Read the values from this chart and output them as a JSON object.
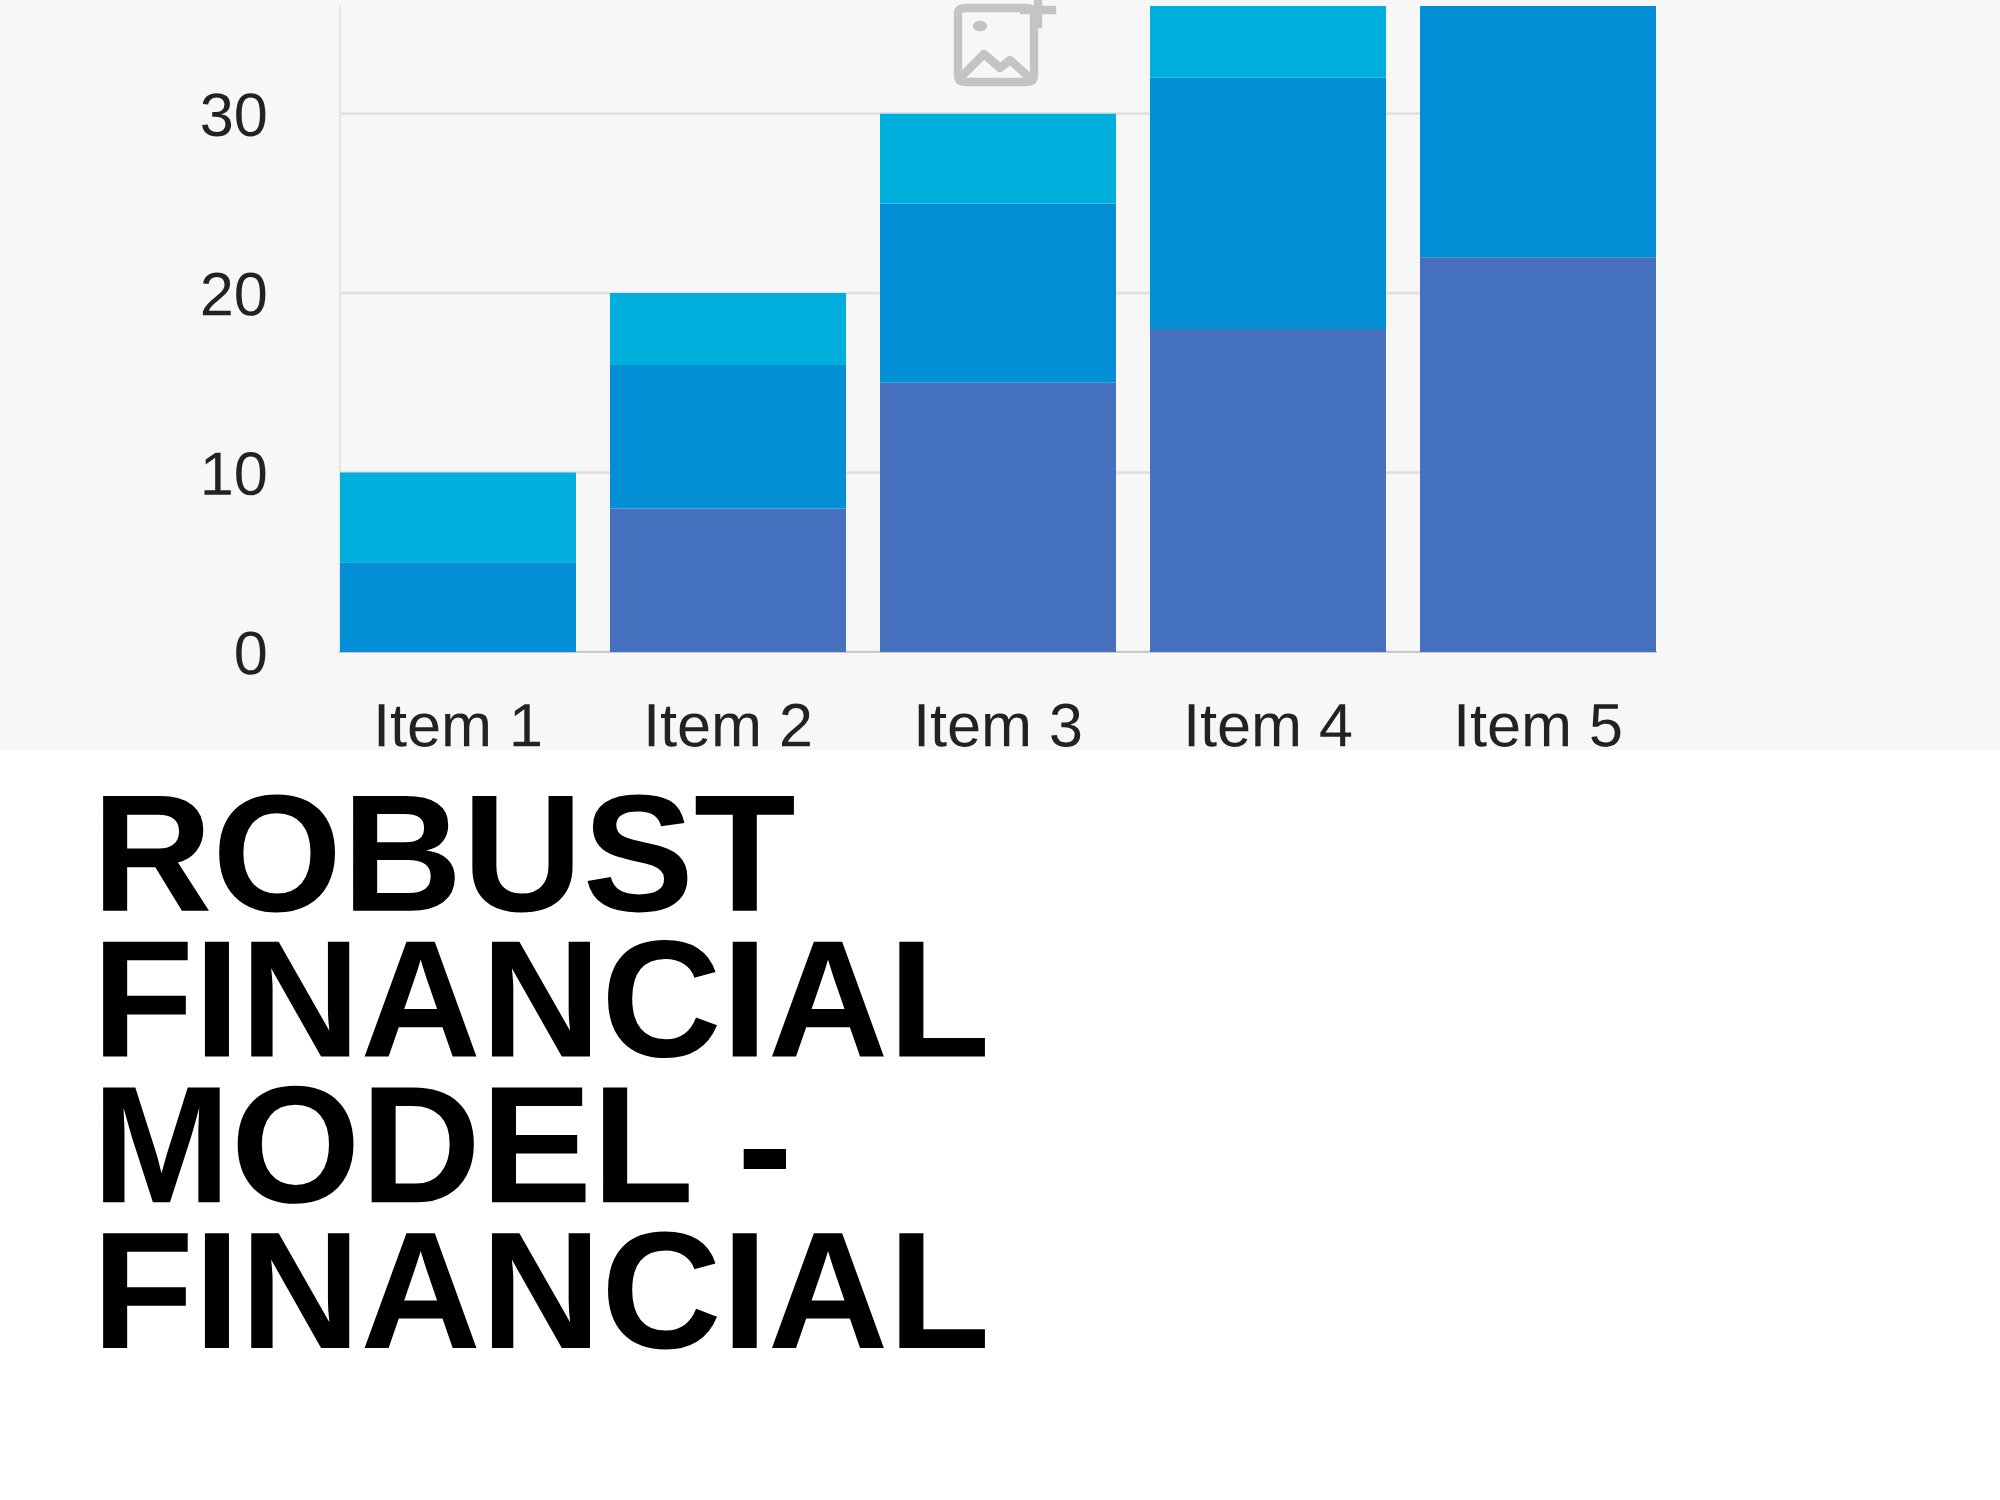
{
  "chart_data": {
    "type": "bar",
    "title": "ROBUST\nFINANCIAL\nMODEL -\nFINANCIAL",
    "categories": [
      "Item 1",
      "Item 2",
      "Item 3",
      "Item 4",
      "Item 5"
    ],
    "stacked": true,
    "series": [
      {
        "color": "#4570be",
        "values": [
          0,
          8,
          15,
          18,
          22
        ]
      },
      {
        "color": "#028fd5",
        "values": [
          5,
          8,
          10,
          14,
          14
        ]
      },
      {
        "color": "#00afdb",
        "values": [
          5,
          4,
          5,
          4,
          null
        ]
      }
    ],
    "ylim": [
      0,
      36
    ],
    "yticks": [
      0,
      10,
      20,
      30
    ],
    "grid": "y"
  }
}
